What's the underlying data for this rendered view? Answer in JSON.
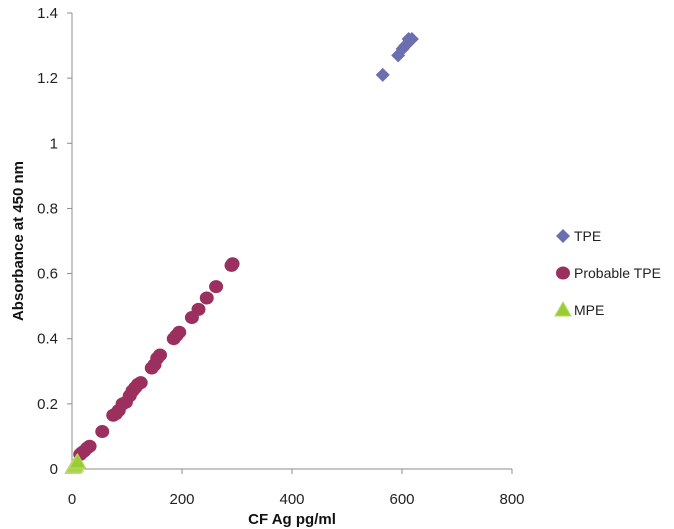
{
  "chart_data": {
    "type": "scatter",
    "title": "",
    "xlabel": "CF Ag pg/ml",
    "ylabel": "Absorbance at 450 nm",
    "xlim": [
      0,
      800
    ],
    "ylim": [
      0,
      1.4
    ],
    "xticks": [
      "0",
      "200",
      "400",
      "600",
      "800"
    ],
    "yticks": [
      "0",
      "0.2",
      "0.4",
      "0.6",
      "0.8",
      "1",
      "1.2",
      "1.4"
    ],
    "grid": false,
    "legend_position": "right",
    "series": [
      {
        "name": "TPE",
        "marker": "diamond",
        "color": "#6b6fb0",
        "points": [
          [
            565,
            1.21
          ],
          [
            593,
            1.27
          ],
          [
            601,
            1.29
          ],
          [
            606,
            1.3
          ],
          [
            612,
            1.32
          ],
          [
            618,
            1.32
          ]
        ]
      },
      {
        "name": "Probable TPE",
        "marker": "circle",
        "color": "#9b2f5e",
        "points": [
          [
            15,
            0.045
          ],
          [
            18,
            0.05
          ],
          [
            22,
            0.055
          ],
          [
            28,
            0.065
          ],
          [
            32,
            0.07
          ],
          [
            55,
            0.115
          ],
          [
            75,
            0.165
          ],
          [
            80,
            0.17
          ],
          [
            85,
            0.18
          ],
          [
            92,
            0.2
          ],
          [
            98,
            0.205
          ],
          [
            105,
            0.225
          ],
          [
            110,
            0.24
          ],
          [
            115,
            0.25
          ],
          [
            120,
            0.26
          ],
          [
            125,
            0.265
          ],
          [
            145,
            0.31
          ],
          [
            150,
            0.32
          ],
          [
            155,
            0.34
          ],
          [
            160,
            0.35
          ],
          [
            185,
            0.4
          ],
          [
            190,
            0.41
          ],
          [
            195,
            0.42
          ],
          [
            218,
            0.465
          ],
          [
            230,
            0.49
          ],
          [
            245,
            0.525
          ],
          [
            262,
            0.56
          ],
          [
            290,
            0.625
          ],
          [
            292,
            0.63
          ]
        ]
      },
      {
        "name": "MPE",
        "marker": "triangle",
        "color": "#9acd32",
        "points": [
          [
            2,
            0.005
          ],
          [
            4,
            0.008
          ],
          [
            6,
            0.012
          ],
          [
            8,
            0.018
          ],
          [
            10,
            0.022
          ]
        ]
      }
    ]
  }
}
